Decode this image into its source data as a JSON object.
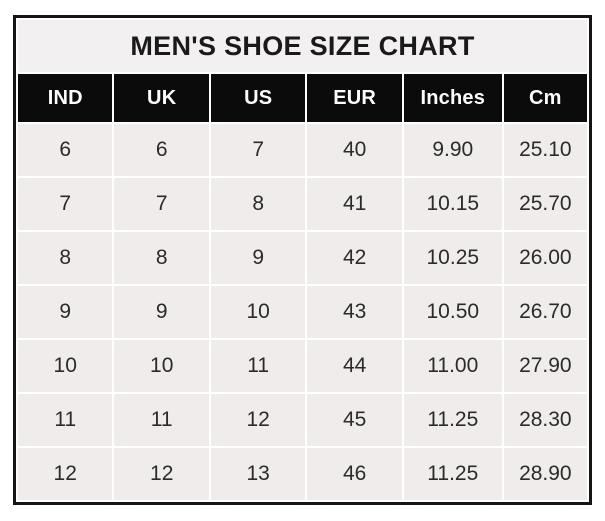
{
  "title": "MEN'S SHOE SIZE CHART",
  "table": {
    "headers": [
      "IND",
      "UK",
      "US",
      "EUR",
      "Inches",
      "Cm"
    ],
    "rows": [
      [
        "6",
        "6",
        "7",
        "40",
        "9.90",
        "25.10"
      ],
      [
        "7",
        "7",
        "8",
        "41",
        "10.15",
        "25.70"
      ],
      [
        "8",
        "8",
        "9",
        "42",
        "10.25",
        "26.00"
      ],
      [
        "9",
        "9",
        "10",
        "43",
        "10.50",
        "26.70"
      ],
      [
        "10",
        "10",
        "11",
        "44",
        "11.00",
        "27.90"
      ],
      [
        "11",
        "11",
        "12",
        "45",
        "11.25",
        "28.30"
      ],
      [
        "12",
        "12",
        "13",
        "46",
        "11.25",
        "28.90"
      ]
    ]
  },
  "chart_data": {
    "type": "table",
    "title": "MEN'S SHOE SIZE CHART",
    "columns": [
      "IND",
      "UK",
      "US",
      "EUR",
      "Inches",
      "Cm"
    ],
    "rows": [
      [
        6,
        6,
        7,
        40,
        9.9,
        25.1
      ],
      [
        7,
        7,
        8,
        41,
        10.15,
        25.7
      ],
      [
        8,
        8,
        9,
        42,
        10.25,
        26.0
      ],
      [
        9,
        9,
        10,
        43,
        10.5,
        26.7
      ],
      [
        10,
        10,
        11,
        44,
        11.0,
        27.9
      ],
      [
        11,
        11,
        12,
        45,
        11.25,
        28.3
      ],
      [
        12,
        12,
        13,
        46,
        11.25,
        28.9
      ]
    ]
  },
  "colors": {
    "page_background": "#ffffff",
    "title_background": "#f2f0f0",
    "header_background": "#0b0b0b",
    "header_text": "#fdfdfd",
    "cell_background": "#efeceb",
    "cell_text": "#2b2b2b",
    "outer_border": "#141414",
    "separator": "#ffffff"
  }
}
